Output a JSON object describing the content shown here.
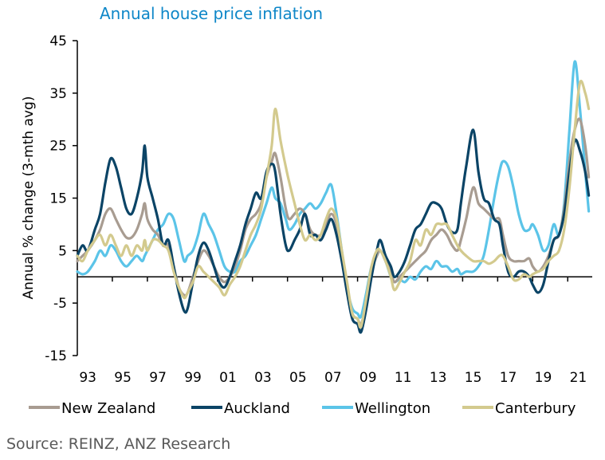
{
  "chart_data": {
    "type": "line",
    "title": "Annual house price inflation",
    "xlabel": "",
    "ylabel": "Annual % change (3-mth avg)",
    "ylim": [
      -15,
      45
    ],
    "yticks": [
      45,
      35,
      25,
      15,
      5,
      -5,
      -15
    ],
    "xlim": [
      1993,
      2022.4
    ],
    "xtick_labels": [
      "93",
      "95",
      "97",
      "99",
      "01",
      "03",
      "05",
      "07",
      "09",
      "11",
      "13",
      "15",
      "17",
      "19",
      "21"
    ],
    "grid": false,
    "legend_position": "bottom",
    "source": "Source: REINZ, ANZ Research",
    "x": [
      1993.0,
      1993.3,
      1993.6,
      1994.0,
      1994.3,
      1994.6,
      1994.9,
      1995.2,
      1995.5,
      1995.8,
      1996.1,
      1996.4,
      1996.7,
      1996.85,
      1997.0,
      1997.3,
      1997.6,
      1997.9,
      1998.2,
      1998.5,
      1998.8,
      1999.1,
      1999.3,
      1999.6,
      1999.9,
      2000.2,
      2000.5,
      2000.8,
      2001.1,
      2001.4,
      2001.7,
      2002.0,
      2002.3,
      2002.6,
      2002.9,
      2003.2,
      2003.5,
      2003.8,
      2004.1,
      2004.3,
      2004.6,
      2004.9,
      2005.1,
      2005.4,
      2005.7,
      2006.0,
      2006.3,
      2006.6,
      2006.9,
      2007.2,
      2007.5,
      2007.8,
      2008.1,
      2008.4,
      2008.7,
      2009.0,
      2009.2,
      2009.5,
      2009.8,
      2010.1,
      2010.3,
      2010.6,
      2010.9,
      2011.1,
      2011.4,
      2011.7,
      2012.0,
      2012.3,
      2012.6,
      2012.9,
      2013.2,
      2013.5,
      2013.8,
      2014.1,
      2014.4,
      2014.7,
      2014.9,
      2015.2,
      2015.6,
      2015.9,
      2016.2,
      2016.5,
      2016.8,
      2017.1,
      2017.3,
      2017.6,
      2017.9,
      2018.2,
      2018.5,
      2018.8,
      2019.0,
      2019.3,
      2019.6,
      2019.9,
      2020.2,
      2020.5,
      2020.8,
      2021.1,
      2021.4,
      2021.7,
      2022.0,
      2022.2
    ],
    "series": [
      {
        "name": "New Zealand",
        "color": "#a89c91",
        "values": [
          3,
          4,
          5,
          7,
          9,
          12,
          13,
          11,
          9,
          7.5,
          7.5,
          9,
          12,
          14,
          11,
          9,
          8,
          6,
          6,
          2,
          -2,
          -3.5,
          -3,
          0,
          3,
          5,
          4,
          2,
          0,
          -1,
          0,
          2,
          5,
          9,
          11,
          12,
          14,
          19,
          22,
          23.5,
          19,
          13,
          11,
          12,
          13,
          12,
          9,
          8,
          8,
          10,
          12,
          10,
          4,
          -2,
          -7,
          -8,
          -9,
          -5,
          1,
          4,
          5,
          3,
          1,
          -1,
          0,
          1,
          2,
          3,
          4,
          5,
          7,
          8,
          9,
          8,
          6,
          5,
          7,
          11,
          17,
          14,
          13,
          12,
          11,
          11,
          8,
          4,
          3,
          3,
          3,
          3.5,
          2,
          1,
          2,
          4,
          7,
          8,
          13,
          22,
          28,
          30,
          25,
          19
        ]
      },
      {
        "name": "Auckland",
        "color": "#0b4466",
        "values": [
          4,
          6,
          5,
          9,
          12,
          18,
          22.5,
          21,
          17,
          13,
          12,
          15,
          20,
          25,
          19,
          15,
          11,
          6,
          7,
          2,
          -3,
          -6.5,
          -6,
          -1,
          4,
          6.5,
          5,
          2,
          -1,
          -2,
          0,
          3,
          6,
          10,
          13,
          16,
          15,
          20,
          21.5,
          20,
          12,
          6,
          5,
          7,
          9,
          12,
          8,
          8,
          7,
          9,
          11,
          8,
          3,
          -3,
          -8,
          -9,
          -10.5,
          -6,
          0,
          5,
          7,
          4,
          2,
          0,
          1,
          3,
          6,
          9,
          10,
          12,
          14,
          14,
          13,
          10,
          8.5,
          9,
          14,
          21,
          28,
          20,
          15,
          14,
          11,
          10,
          6,
          1,
          0,
          1,
          1,
          0,
          -1.5,
          -3,
          -1.5,
          3,
          7,
          8,
          12,
          20,
          26,
          24,
          20,
          15.5
        ]
      },
      {
        "name": "Wellington",
        "color": "#5bc4e8",
        "values": [
          1,
          0.5,
          1,
          3,
          5,
          4,
          6,
          5,
          3,
          2,
          3,
          4,
          3,
          4,
          5,
          7,
          9,
          10,
          12,
          11,
          7,
          3,
          4,
          5,
          8,
          12,
          10,
          8,
          5,
          2,
          1,
          1,
          3,
          4,
          6,
          8,
          11,
          14,
          17,
          15,
          14,
          11,
          9,
          10,
          12,
          13,
          14,
          13,
          14,
          16,
          17.5,
          12,
          5,
          -2,
          -6,
          -7,
          -7.5,
          -3,
          2,
          4,
          5,
          3,
          0,
          -1,
          -0.5,
          -1,
          0,
          -0.5,
          1,
          2,
          1.5,
          3,
          2,
          2,
          1,
          1.5,
          0.5,
          1,
          1,
          2,
          4,
          9,
          15,
          20,
          22,
          21,
          17,
          12,
          9,
          9,
          10,
          8,
          5,
          6,
          10,
          8,
          14,
          28,
          41,
          32,
          20,
          12.5
        ]
      },
      {
        "name": "Canterbury",
        "color": "#d3ca8e",
        "values": [
          4,
          3,
          5,
          7,
          8,
          6,
          8,
          6,
          4,
          6,
          4,
          6,
          5,
          7,
          5,
          7,
          7,
          6,
          5,
          1,
          -2,
          -4,
          -3,
          -1,
          2,
          1,
          0,
          -1,
          -2,
          -3.5,
          -1.5,
          0,
          2,
          5,
          8,
          10,
          13,
          19,
          25,
          32,
          26,
          21,
          18,
          14,
          10,
          7,
          8,
          7,
          8,
          11,
          13,
          11,
          5,
          -1,
          -7,
          -8,
          -9.5,
          -4,
          2,
          5,
          5,
          3,
          0,
          -2.5,
          -1,
          1,
          3,
          7,
          6,
          9,
          8,
          10,
          10,
          10,
          8,
          6,
          5,
          4,
          3,
          3,
          3,
          2.5,
          3,
          4,
          4,
          2,
          -0.5,
          -0.5,
          0.5,
          0,
          0.5,
          1,
          1.5,
          3,
          4,
          5,
          9,
          17,
          28,
          37,
          35,
          32
        ]
      }
    ]
  }
}
